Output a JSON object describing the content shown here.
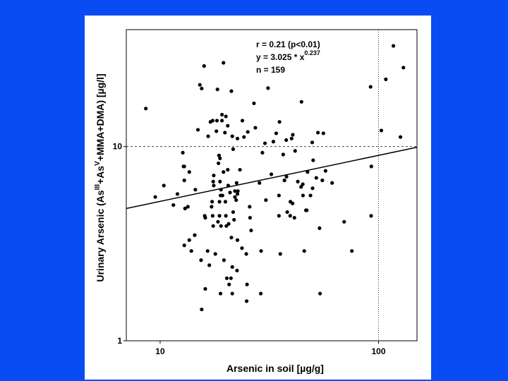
{
  "colors": {
    "background": "#0a4cf4",
    "panel": "#ffffff",
    "ink": "#000000"
  },
  "chart_data": {
    "type": "scatter",
    "title": "",
    "xlabel": "Arsenic in soil [µg/g]",
    "ylabel": {
      "prefix": "Urinary Arsenic (As",
      "sup1": "III",
      "mid": "+As",
      "sup2": "V",
      "suffix": "+MMA+DMA) [µg/l]"
    },
    "x_scale": "log",
    "y_scale": "log",
    "xlim": [
      7,
      150
    ],
    "ylim": [
      1,
      40
    ],
    "x_ticks": [
      {
        "value": 10,
        "label": "10"
      },
      {
        "value": 100,
        "label": "100"
      }
    ],
    "y_ticks": [
      {
        "value": 1,
        "label": "1"
      },
      {
        "value": 10,
        "label": "10"
      }
    ],
    "reference_lines": {
      "x": 100,
      "y": 10
    },
    "annotations": {
      "line1": "r = 0.21 (p<0.01)",
      "line2_prefix": "y = 3.025 * x",
      "line2_exp": "0.237",
      "line3": "n = 159"
    },
    "fit": {
      "a": 3.025,
      "b": 0.237
    },
    "series": [
      {
        "points": [
          [
            8.6,
            15.7
          ],
          [
            9.5,
            5.5
          ],
          [
            10.4,
            6.3
          ],
          [
            11.5,
            5.0
          ],
          [
            12.0,
            5.7
          ],
          [
            12.7,
            9.3
          ],
          [
            12.8,
            7.9
          ],
          [
            12.9,
            6.7
          ],
          [
            13.0,
            4.8
          ],
          [
            13.4,
            4.9
          ],
          [
            13.6,
            3.3
          ],
          [
            12.9,
            3.1
          ],
          [
            12.9,
            7.9
          ],
          [
            13.6,
            7.4
          ],
          [
            14.5,
            6.0
          ],
          [
            14.4,
            3.5
          ],
          [
            13.9,
            2.9
          ],
          [
            14.9,
            12.2
          ],
          [
            15.5,
            19.9
          ],
          [
            15.2,
            20.8
          ],
          [
            15.4,
            2.6
          ],
          [
            15.5,
            1.45
          ],
          [
            15.9,
            26.0
          ],
          [
            16.0,
            4.4
          ],
          [
            16.1,
            1.85
          ],
          [
            16.1,
            4.3
          ],
          [
            16.6,
            11.3
          ],
          [
            16.5,
            2.9
          ],
          [
            16.8,
            2.45
          ],
          [
            17.0,
            13.4
          ],
          [
            17.2,
            4.9
          ],
          [
            17.4,
            4.4
          ],
          [
            17.3,
            5.2
          ],
          [
            17.4,
            13.6
          ],
          [
            17.5,
            3.9
          ],
          [
            17.5,
            6.6
          ],
          [
            17.6,
            6.3
          ],
          [
            17.6,
            7.1
          ],
          [
            17.9,
            2.8
          ],
          [
            18.1,
            12.0
          ],
          [
            18.2,
            13.6
          ],
          [
            18.3,
            19.7
          ],
          [
            18.4,
            4.1
          ],
          [
            18.5,
            8.2
          ],
          [
            18.7,
            5.2
          ],
          [
            18.8,
            6.6
          ],
          [
            18.9,
            5.6
          ],
          [
            18.6,
            9.0
          ],
          [
            18.8,
            8.7
          ],
          [
            18.7,
            4.4
          ],
          [
            18.9,
            1.75
          ],
          [
            19.0,
            3.9
          ],
          [
            19.2,
            14.6
          ],
          [
            19.0,
            6.0
          ],
          [
            19.2,
            13.6
          ],
          [
            19.3,
            5.6
          ],
          [
            19.5,
            27.0
          ],
          [
            19.5,
            7.4
          ],
          [
            19.6,
            2.6
          ],
          [
            19.8,
            11.8
          ],
          [
            19.9,
            5.2
          ],
          [
            20.0,
            14.3
          ],
          [
            20.0,
            4.4
          ],
          [
            20.1,
            3.9
          ],
          [
            20.4,
            12.8
          ],
          [
            20.2,
            2.1
          ],
          [
            20.4,
            7.6
          ],
          [
            20.5,
            6.3
          ],
          [
            20.6,
            4.0
          ],
          [
            20.7,
            1.95
          ],
          [
            20.9,
            5.8
          ],
          [
            21.1,
            2.1
          ],
          [
            21.2,
            19.3
          ],
          [
            21.2,
            3.4
          ],
          [
            21.4,
            11.3
          ],
          [
            21.4,
            2.4
          ],
          [
            21.4,
            1.75
          ],
          [
            21.6,
            9.7
          ],
          [
            21.6,
            4.6
          ],
          [
            21.8,
            4.2
          ],
          [
            22.0,
            5.5
          ],
          [
            22.0,
            5.9
          ],
          [
            22.3,
            5.3
          ],
          [
            22.4,
            6.5
          ],
          [
            22.5,
            2.3
          ],
          [
            22.6,
            5.7
          ],
          [
            22.6,
            3.3
          ],
          [
            22.6,
            11.0
          ],
          [
            22.7,
            5.9
          ],
          [
            23.2,
            7.6
          ],
          [
            23.7,
            3.0
          ],
          [
            23.8,
            13.6
          ],
          [
            24.2,
            11.2
          ],
          [
            24.8,
            2.8
          ],
          [
            24.9,
            1.6
          ],
          [
            25.0,
            1.95
          ],
          [
            25.2,
            11.9
          ],
          [
            25.7,
            4.9
          ],
          [
            25.8,
            4.3
          ],
          [
            26.1,
            3.7
          ],
          [
            26.9,
            16.7
          ],
          [
            27.3,
            12.5
          ],
          [
            28.5,
            6.5
          ],
          [
            28.9,
            1.75
          ],
          [
            29.0,
            2.9
          ],
          [
            29.4,
            9.3
          ],
          [
            30.2,
            10.4
          ],
          [
            30.5,
            5.3
          ],
          [
            31.2,
            20.0
          ],
          [
            32.3,
            7.2
          ],
          [
            33.0,
            10.6
          ],
          [
            34.0,
            11.7
          ],
          [
            35.0,
            5.6
          ],
          [
            35.0,
            4.4
          ],
          [
            35.2,
            13.4
          ],
          [
            35.5,
            2.8
          ],
          [
            36.6,
            9.1
          ],
          [
            37.1,
            6.7
          ],
          [
            37.8,
            10.8
          ],
          [
            37.9,
            7.0
          ],
          [
            38.2,
            4.6
          ],
          [
            39.4,
            4.4
          ],
          [
            39.5,
            5.2
          ],
          [
            40.0,
            11.0
          ],
          [
            40.4,
            5.1
          ],
          [
            40.5,
            11.5
          ],
          [
            41.2,
            4.3
          ],
          [
            41.5,
            9.5
          ],
          [
            42.7,
            6.6
          ],
          [
            44.2,
            6.2
          ],
          [
            44.4,
            17.0
          ],
          [
            45.0,
            6.4
          ],
          [
            45.1,
            5.6
          ],
          [
            45.7,
            2.9
          ],
          [
            46.5,
            4.7
          ],
          [
            46.9,
            4.7
          ],
          [
            47.3,
            7.4
          ],
          [
            48.8,
            5.6
          ],
          [
            49.7,
            10.5
          ],
          [
            49.9,
            6.1
          ],
          [
            50.2,
            8.5
          ],
          [
            51.9,
            6.9
          ],
          [
            52.8,
            11.8
          ],
          [
            53.7,
            3.8
          ],
          [
            54.0,
            1.75
          ],
          [
            55.3,
            6.7
          ],
          [
            55.9,
            11.7
          ],
          [
            57.2,
            7.5
          ],
          [
            61.3,
            6.5
          ],
          [
            69.6,
            4.1
          ],
          [
            75.5,
            2.9
          ],
          [
            92.5,
            4.4
          ],
          [
            92.0,
            20.3
          ],
          [
            92.7,
            7.9
          ],
          [
            103.0,
            12.1
          ],
          [
            108.0,
            22.2
          ],
          [
            117.0,
            33.0
          ],
          [
            126.0,
            11.2
          ],
          [
            130.0,
            25.5
          ]
        ]
      }
    ]
  }
}
